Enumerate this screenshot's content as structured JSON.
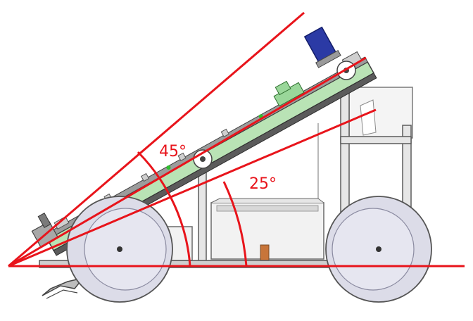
{
  "angles": {
    "large": {
      "label": "45°",
      "degrees": 45
    },
    "small": {
      "label": "25°",
      "degrees": 25
    }
  },
  "colors": {
    "line_red": "#e8141b",
    "plate_green": "#b9e3b5",
    "plate_dark": "#5b5b5b",
    "frame_gray": "#6f6f6f",
    "wheel_fill": "#dcdce8",
    "wheel_rim": "#c2c2d4",
    "motor_blue": "#2b3aa5",
    "box_fill": "#f2f2f2",
    "copper": "#c8753a"
  }
}
